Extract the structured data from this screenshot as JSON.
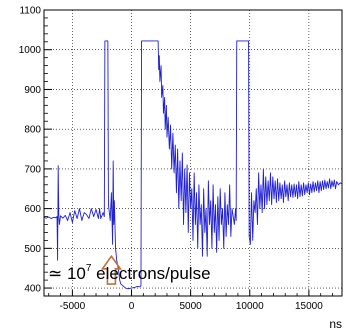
{
  "chart_data": {
    "type": "line",
    "title": "",
    "xlabel": "ns",
    "ylabel": "",
    "xlim": [
      -7400,
      17800
    ],
    "ylim": [
      380,
      1100
    ],
    "xticks": [
      -5000,
      0,
      5000,
      10000,
      15000
    ],
    "xtick_labels": [
      "-5000",
      "0",
      "5000",
      "10000",
      "15000"
    ],
    "yticks": [
      400,
      500,
      600,
      700,
      800,
      900,
      1000,
      1100
    ],
    "ytick_labels": [
      "400",
      "500",
      "600",
      "700",
      "800",
      "900",
      "1000",
      "1100"
    ],
    "grid": true,
    "grid_style": "dotted",
    "line_color": "#1f1fd6",
    "annotation": {
      "prefix": "≃ 10",
      "superscript": "7",
      "suffix": " electrons/pulse",
      "arrow_x": -1700,
      "arrow_y_base": 410,
      "arrow_y_tip": 480,
      "arrow_color": "#c0703a"
    },
    "series": [
      {
        "values": [
          [
            -7400,
            578
          ],
          [
            -7200,
            576
          ],
          [
            -7000,
            579
          ],
          [
            -6800,
            575
          ],
          [
            -6600,
            578
          ],
          [
            -6400,
            577
          ],
          [
            -6300,
            580
          ],
          [
            -6250,
            470
          ],
          [
            -6200,
            708
          ],
          [
            -6150,
            585
          ],
          [
            -6100,
            560
          ],
          [
            -6000,
            582
          ],
          [
            -5800,
            576
          ],
          [
            -5600,
            583
          ],
          [
            -5400,
            570
          ],
          [
            -5200,
            590
          ],
          [
            -5000,
            565
          ],
          [
            -4800,
            595
          ],
          [
            -4600,
            575
          ],
          [
            -4400,
            600
          ],
          [
            -4200,
            570
          ],
          [
            -4000,
            590
          ],
          [
            -3800,
            585
          ],
          [
            -3600,
            575
          ],
          [
            -3400,
            600
          ],
          [
            -3200,
            580
          ],
          [
            -3000,
            598
          ],
          [
            -2800,
            575
          ],
          [
            -2700,
            600
          ],
          [
            -2600,
            575
          ],
          [
            -2400,
            590
          ],
          [
            -2300,
            580
          ],
          [
            -2250,
            1022
          ],
          [
            -2000,
            1022
          ],
          [
            -1950,
            610
          ],
          [
            -1800,
            570
          ],
          [
            -1700,
            640
          ],
          [
            -1600,
            510
          ],
          [
            -1550,
            720
          ],
          [
            -1500,
            560
          ],
          [
            -1450,
            620
          ],
          [
            -1350,
            500
          ],
          [
            -1250,
            470
          ],
          [
            -1100,
            445
          ],
          [
            -1000,
            420
          ],
          [
            -900,
            410
          ],
          [
            -700,
            405
          ],
          [
            -500,
            400
          ],
          [
            -300,
            398
          ],
          [
            0,
            400
          ],
          [
            300,
            402
          ],
          [
            500,
            404
          ],
          [
            700,
            403
          ],
          [
            800,
            406
          ],
          [
            850,
            1022
          ],
          [
            2250,
            1022
          ],
          [
            2300,
            950
          ],
          [
            2350,
            985
          ],
          [
            2400,
            920
          ],
          [
            2500,
            960
          ],
          [
            2550,
            880
          ],
          [
            2650,
            910
          ],
          [
            2700,
            840
          ],
          [
            2800,
            880
          ],
          [
            2850,
            800
          ],
          [
            2950,
            860
          ],
          [
            3000,
            780
          ],
          [
            3100,
            830
          ],
          [
            3200,
            750
          ],
          [
            3300,
            810
          ],
          [
            3400,
            700
          ],
          [
            3500,
            790
          ],
          [
            3600,
            690
          ],
          [
            3700,
            760
          ],
          [
            3800,
            640
          ],
          [
            3900,
            750
          ],
          [
            4000,
            600
          ],
          [
            4100,
            720
          ],
          [
            4200,
            620
          ],
          [
            4300,
            740
          ],
          [
            4400,
            560
          ],
          [
            4500,
            700
          ],
          [
            4600,
            590
          ],
          [
            4700,
            710
          ],
          [
            4800,
            540
          ],
          [
            4900,
            690
          ],
          [
            5000,
            600
          ],
          [
            5100,
            650
          ],
          [
            5200,
            520
          ],
          [
            5300,
            690
          ],
          [
            5400,
            560
          ],
          [
            5500,
            640
          ],
          [
            5600,
            500
          ],
          [
            5700,
            660
          ],
          [
            5800,
            560
          ],
          [
            5900,
            610
          ],
          [
            6000,
            480
          ],
          [
            6100,
            650
          ],
          [
            6200,
            540
          ],
          [
            6300,
            600
          ],
          [
            6400,
            480
          ],
          [
            6500,
            670
          ],
          [
            6600,
            560
          ],
          [
            6700,
            620
          ],
          [
            6800,
            500
          ],
          [
            6900,
            660
          ],
          [
            7000,
            540
          ],
          [
            7100,
            610
          ],
          [
            7200,
            490
          ],
          [
            7300,
            630
          ],
          [
            7400,
            520
          ],
          [
            7500,
            650
          ],
          [
            7600,
            560
          ],
          [
            7700,
            600
          ],
          [
            7800,
            500
          ],
          [
            7900,
            640
          ],
          [
            8000,
            530
          ],
          [
            8100,
            610
          ],
          [
            8200,
            560
          ],
          [
            8300,
            660
          ],
          [
            8400,
            530
          ],
          [
            8500,
            600
          ],
          [
            8600,
            580
          ],
          [
            8700,
            560
          ],
          [
            8800,
            600
          ],
          [
            8850,
            570
          ],
          [
            8900,
            1022
          ],
          [
            9900,
            1022
          ],
          [
            9950,
            530
          ],
          [
            10050,
            510
          ],
          [
            10150,
            640
          ],
          [
            10250,
            520
          ],
          [
            10350,
            620
          ],
          [
            10450,
            590
          ],
          [
            10550,
            650
          ],
          [
            10650,
            560
          ],
          [
            10750,
            690
          ],
          [
            10850,
            600
          ],
          [
            10950,
            660
          ],
          [
            11050,
            590
          ],
          [
            11150,
            700
          ],
          [
            11250,
            600
          ],
          [
            11350,
            680
          ],
          [
            11450,
            610
          ],
          [
            11550,
            670
          ],
          [
            11650,
            620
          ],
          [
            11750,
            690
          ],
          [
            11850,
            610
          ],
          [
            11950,
            680
          ],
          [
            12050,
            625
          ],
          [
            12150,
            670
          ],
          [
            12250,
            615
          ],
          [
            12350,
            675
          ],
          [
            12450,
            620
          ],
          [
            12550,
            665
          ],
          [
            12650,
            625
          ],
          [
            12750,
            660
          ],
          [
            12850,
            615
          ],
          [
            12950,
            670
          ],
          [
            13050,
            630
          ],
          [
            13150,
            660
          ],
          [
            13250,
            620
          ],
          [
            13350,
            665
          ],
          [
            13450,
            630
          ],
          [
            13550,
            660
          ],
          [
            13650,
            628
          ],
          [
            13750,
            662
          ],
          [
            13850,
            630
          ],
          [
            13950,
            660
          ],
          [
            14050,
            625
          ],
          [
            14150,
            668
          ],
          [
            14250,
            630
          ],
          [
            14350,
            660
          ],
          [
            14450,
            632
          ],
          [
            14550,
            665
          ],
          [
            14650,
            635
          ],
          [
            14750,
            660
          ],
          [
            14850,
            640
          ],
          [
            14950,
            665
          ],
          [
            15050,
            635
          ],
          [
            15150,
            662
          ],
          [
            15250,
            640
          ],
          [
            15350,
            668
          ],
          [
            15450,
            642
          ],
          [
            15550,
            665
          ],
          [
            15650,
            645
          ],
          [
            15750,
            670
          ],
          [
            15850,
            640
          ],
          [
            15950,
            668
          ],
          [
            16050,
            645
          ],
          [
            16150,
            670
          ],
          [
            16250,
            648
          ],
          [
            16350,
            672
          ],
          [
            16450,
            650
          ],
          [
            16550,
            668
          ],
          [
            16650,
            652
          ],
          [
            16750,
            675
          ],
          [
            16850,
            650
          ],
          [
            16950,
            670
          ],
          [
            17050,
            655
          ],
          [
            17150,
            672
          ],
          [
            17250,
            650
          ],
          [
            17350,
            668
          ],
          [
            17500,
            660
          ],
          [
            17650,
            665
          ],
          [
            17800,
            662
          ]
        ]
      }
    ]
  }
}
